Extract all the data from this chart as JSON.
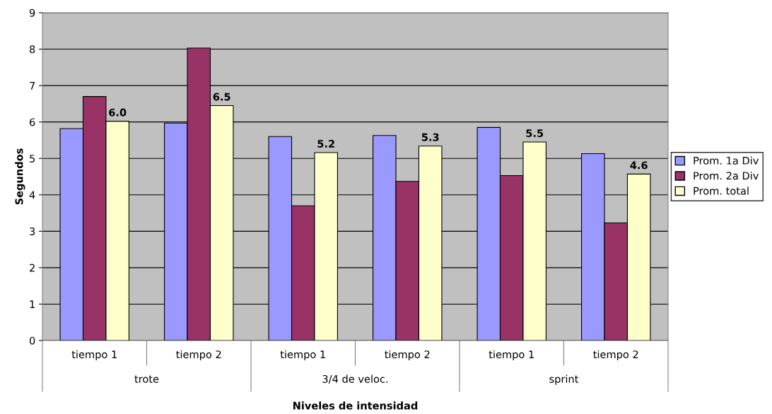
{
  "chart_data": {
    "type": "bar",
    "xlabel": "Niveles de intensidad",
    "ylabel": "Segundos",
    "categories": [
      "tiempo 1",
      "tiempo 2",
      "tiempo 1",
      "tiempo 2",
      "tiempo 1",
      "tiempo 2"
    ],
    "annotations": [
      "trote",
      "3/4 de veloc.",
      "sprint"
    ],
    "series": [
      {
        "name": "Prom. 1a Div",
        "color": "#9999ff",
        "values": [
          5.82,
          5.97,
          5.6,
          5.63,
          5.85,
          5.13
        ]
      },
      {
        "name": "Prom. 2a Div",
        "color": "#993366",
        "values": [
          6.7,
          8.03,
          3.7,
          4.37,
          4.53,
          3.23
        ]
      },
      {
        "name": "Prom. total",
        "color": "#ffffcc",
        "values": [
          6.02,
          6.45,
          5.16,
          5.34,
          5.45,
          4.57
        ],
        "value_labels": [
          "6.0",
          "6.5",
          "5.2",
          "5.3",
          "5.5",
          "4.6"
        ]
      }
    ],
    "ylim": [
      0,
      9
    ],
    "yticks": [
      0,
      1,
      2,
      3,
      4,
      5,
      6,
      7,
      8,
      9
    ],
    "grid": "y",
    "legend": "right"
  }
}
